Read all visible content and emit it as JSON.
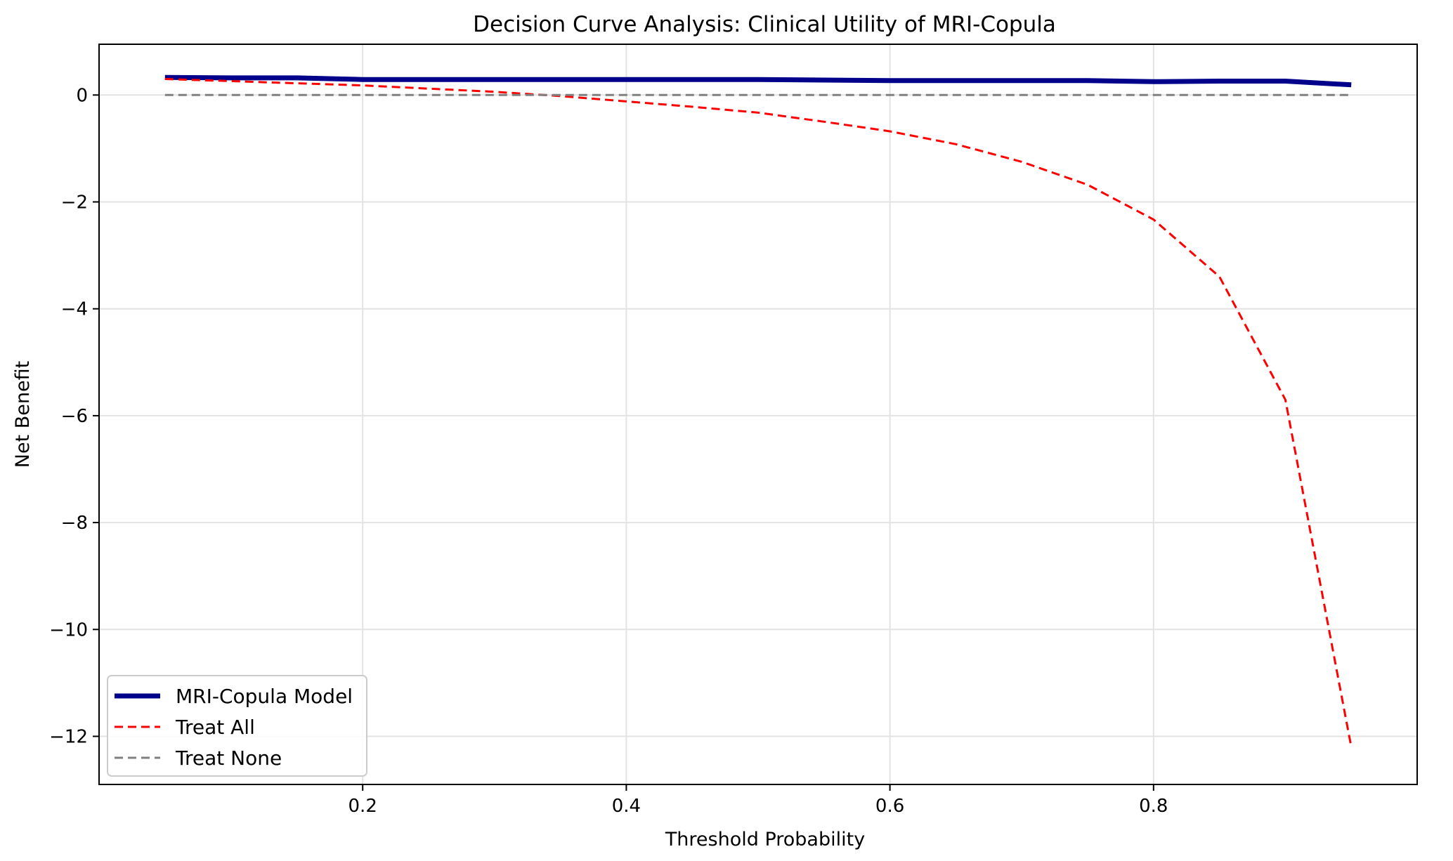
{
  "chart_data": {
    "type": "line",
    "title": "Decision Curve Analysis: Clinical Utility of MRI-Copula",
    "xlabel": "Threshold Probability",
    "ylabel": "Net Benefit",
    "xlim": [
      0.0,
      1.0
    ],
    "ylim": [
      -12.9,
      0.95
    ],
    "xticks": [
      0.2,
      0.4,
      0.6,
      0.8
    ],
    "xtick_labels": [
      "0.2",
      "0.4",
      "0.6",
      "0.8"
    ],
    "yticks": [
      0,
      -2,
      -4,
      -6,
      -8,
      -10,
      -12
    ],
    "ytick_labels": [
      "0",
      "−2",
      "−4",
      "−6",
      "−8",
      "−10",
      "−12"
    ],
    "grid": true,
    "legend_position": "lower-left",
    "series": [
      {
        "name": "MRI-Copula Model",
        "color": "#00008b",
        "style": "solid",
        "x": [
          0.05,
          0.1,
          0.15,
          0.2,
          0.25,
          0.3,
          0.35,
          0.4,
          0.45,
          0.5,
          0.55,
          0.6,
          0.65,
          0.7,
          0.75,
          0.8,
          0.85,
          0.9,
          0.95
        ],
        "y": [
          0.33,
          0.32,
          0.32,
          0.29,
          0.29,
          0.29,
          0.29,
          0.29,
          0.29,
          0.29,
          0.28,
          0.27,
          0.27,
          0.27,
          0.27,
          0.25,
          0.26,
          0.26,
          0.19
        ]
      },
      {
        "name": "Treat All",
        "color": "#ff0000",
        "style": "dashed",
        "x": [
          0.05,
          0.1,
          0.15,
          0.2,
          0.25,
          0.3,
          0.35,
          0.4,
          0.45,
          0.5,
          0.55,
          0.6,
          0.65,
          0.7,
          0.75,
          0.8,
          0.85,
          0.9,
          0.95
        ],
        "y": [
          0.3,
          0.26,
          0.22,
          0.18,
          0.12,
          0.06,
          -0.02,
          -0.12,
          -0.22,
          -0.33,
          -0.5,
          -0.68,
          -0.92,
          -1.25,
          -1.68,
          -2.33,
          -3.4,
          -5.7,
          -12.2
        ]
      },
      {
        "name": "Treat None",
        "color": "#808080",
        "style": "dashed",
        "x": [
          0.05,
          0.95
        ],
        "y": [
          0,
          0
        ]
      }
    ]
  }
}
